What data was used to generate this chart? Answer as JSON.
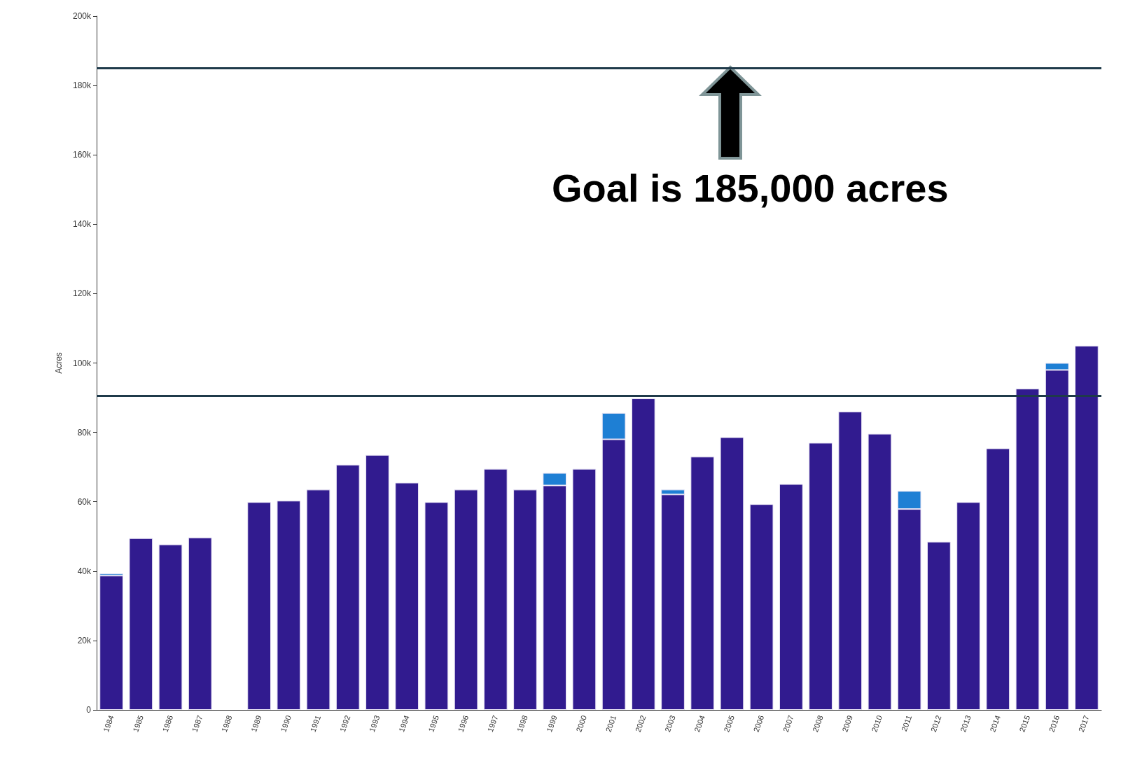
{
  "chart_data": {
    "type": "bar",
    "stacked": true,
    "ylabel": "Acres",
    "categories": [
      "1984",
      "1985",
      "1986",
      "1987",
      "1988",
      "1989",
      "1990",
      "1991",
      "1992",
      "1993",
      "1994",
      "1995",
      "1996",
      "1997",
      "1998",
      "1999",
      "2000",
      "2001",
      "2002",
      "2003",
      "2004",
      "2005",
      "2006",
      "2007",
      "2008",
      "2009",
      "2010",
      "2011",
      "2012",
      "2013",
      "2014",
      "2015",
      "2016",
      "2017"
    ],
    "series": [
      {
        "color": "#311b8f",
        "values": [
          38700,
          49500,
          47700,
          49700,
          null,
          59900,
          60300,
          63500,
          70700,
          73500,
          65500,
          59900,
          63500,
          69500,
          63500,
          64700,
          69500,
          78000,
          89800,
          62100,
          73000,
          78600,
          59300,
          65100,
          77000,
          86000,
          79600,
          57900,
          48500,
          59900,
          75400,
          92600,
          98000,
          105000
        ]
      },
      {
        "color": "#1e7fd4",
        "values": [
          600,
          null,
          null,
          null,
          null,
          null,
          null,
          null,
          null,
          null,
          null,
          null,
          null,
          null,
          null,
          3600,
          null,
          7600,
          null,
          1400,
          null,
          null,
          null,
          null,
          null,
          null,
          null,
          5200,
          null,
          null,
          null,
          null,
          2000,
          null
        ]
      }
    ],
    "ylim": [
      0,
      200000
    ],
    "yticks": [
      0,
      {
        "value": 20000,
        "label": "20k"
      },
      {
        "value": 40000,
        "label": "40k"
      },
      {
        "value": 60000,
        "label": "60k"
      },
      {
        "value": 80000,
        "label": "80k"
      },
      {
        "value": 100000,
        "label": "100k"
      },
      {
        "value": 120000,
        "label": "120k"
      },
      {
        "value": 140000,
        "label": "140k"
      },
      {
        "value": 160000,
        "label": "160k"
      },
      {
        "value": 180000,
        "label": "180k"
      },
      {
        "value": 200000,
        "label": "200k"
      }
    ],
    "ref_lines": [
      {
        "axis": "y",
        "value": 185000,
        "color": "#1f3a4a"
      },
      {
        "axis": "y",
        "value": 90500,
        "color": "#1f3a4a"
      }
    ],
    "annotations": [
      "Goal is 185,000 acres"
    ],
    "grid": false
  }
}
